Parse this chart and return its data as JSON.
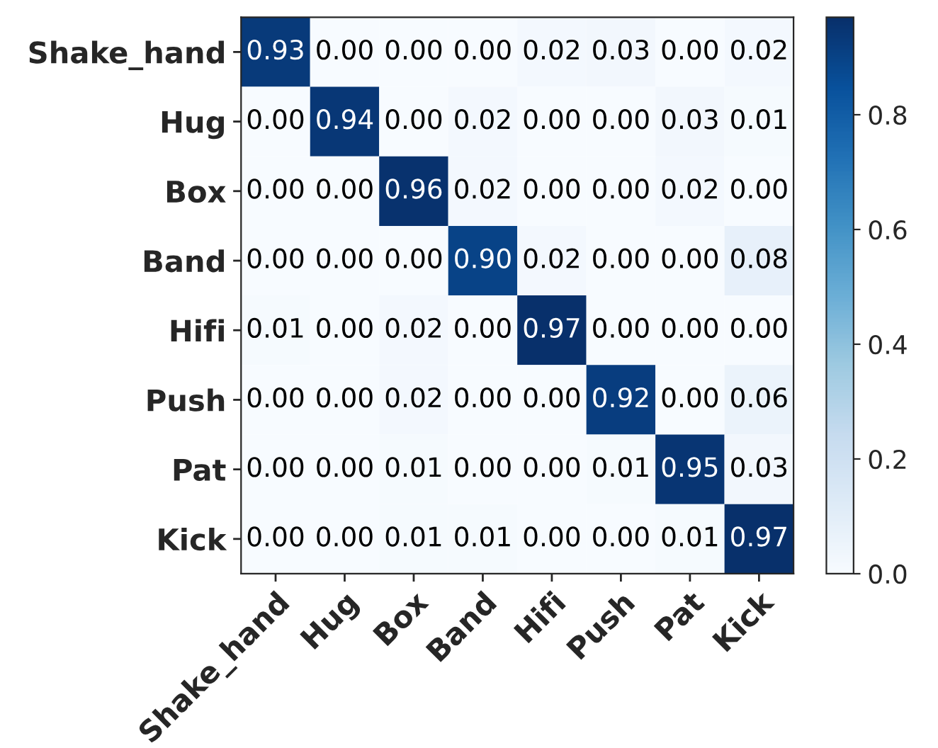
{
  "chart_data": {
    "type": "heatmap",
    "categories": [
      "Shake_hand",
      "Hug",
      "Box",
      "Band",
      "Hifi",
      "Push",
      "Pat",
      "Kick"
    ],
    "y_categories": [
      "Shake_hand",
      "Hug",
      "Box",
      "Band",
      "Hifi",
      "Push",
      "Pat",
      "Kick"
    ],
    "cells": [
      [
        0.93,
        0.0,
        0.0,
        0.0,
        0.02,
        0.03,
        0.0,
        0.02
      ],
      [
        0.0,
        0.94,
        0.0,
        0.02,
        0.0,
        0.0,
        0.03,
        0.01
      ],
      [
        0.0,
        0.0,
        0.96,
        0.02,
        0.0,
        0.0,
        0.02,
        0.0
      ],
      [
        0.0,
        0.0,
        0.0,
        0.9,
        0.02,
        0.0,
        0.0,
        0.08
      ],
      [
        0.01,
        0.0,
        0.02,
        0.0,
        0.97,
        0.0,
        0.0,
        0.0
      ],
      [
        0.0,
        0.0,
        0.02,
        0.0,
        0.0,
        0.92,
        0.0,
        0.06
      ],
      [
        0.0,
        0.0,
        0.01,
        0.0,
        0.0,
        0.01,
        0.95,
        0.03
      ],
      [
        0.0,
        0.0,
        0.01,
        0.01,
        0.0,
        0.0,
        0.01,
        0.97
      ]
    ],
    "cell_labels": [
      [
        "0.93",
        "0.00",
        "0.00",
        "0.00",
        "0.02",
        "0.03",
        "0.00",
        "0.02"
      ],
      [
        "0.00",
        "0.94",
        "0.00",
        "0.02",
        "0.00",
        "0.00",
        "0.03",
        "0.01"
      ],
      [
        "0.00",
        "0.00",
        "0.96",
        "0.02",
        "0.00",
        "0.00",
        "0.02",
        "0.00"
      ],
      [
        "0.00",
        "0.00",
        "0.00",
        "0.90",
        "0.02",
        "0.00",
        "0.00",
        "0.08"
      ],
      [
        "0.01",
        "0.00",
        "0.02",
        "0.00",
        "0.97",
        "0.00",
        "0.00",
        "0.00"
      ],
      [
        "0.00",
        "0.00",
        "0.02",
        "0.00",
        "0.00",
        "0.92",
        "0.00",
        "0.06"
      ],
      [
        "0.00",
        "0.00",
        "0.01",
        "0.00",
        "0.00",
        "0.01",
        "0.95",
        "0.03"
      ],
      [
        "0.00",
        "0.00",
        "0.01",
        "0.01",
        "0.00",
        "0.00",
        "0.01",
        "0.97"
      ]
    ],
    "clim": [
      0.0,
      0.97
    ],
    "cticks": [
      {
        "value": 0.0,
        "label": "0.0"
      },
      {
        "value": 0.2,
        "label": "0.2"
      },
      {
        "value": 0.4,
        "label": "0.4"
      },
      {
        "value": 0.6,
        "label": "0.6"
      },
      {
        "value": 0.8,
        "label": "0.8"
      }
    ],
    "data_labels": true
  }
}
